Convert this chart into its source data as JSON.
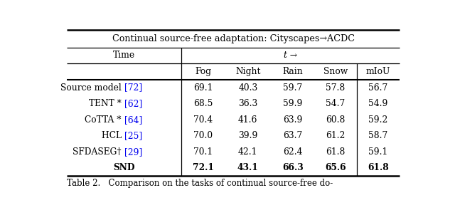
{
  "title": "Continual source-free adaptation: Cityscapes→ACDC",
  "time_label": "Time",
  "t_arrow": "t →",
  "col_headers": [
    "Fog",
    "Night",
    "Rain",
    "Snow",
    "mIoU"
  ],
  "row_label_cite_color": [
    {
      "base": "Source model ",
      "cite": "[72]"
    },
    {
      "base": "TENT * ",
      "cite": "[62]"
    },
    {
      "base": "CoTTA * ",
      "cite": "[64]"
    },
    {
      "base": "HCL ",
      "cite": "[25]"
    },
    {
      "base": "SFDASEG† ",
      "cite": "[29]"
    },
    {
      "base": "SND",
      "cite": ""
    }
  ],
  "data": [
    [
      "69.1",
      "40.3",
      "59.7",
      "57.8",
      "56.7"
    ],
    [
      "68.5",
      "36.3",
      "59.9",
      "54.7",
      "54.9"
    ],
    [
      "70.4",
      "41.6",
      "63.9",
      "60.8",
      "59.2"
    ],
    [
      "70.0",
      "39.9",
      "63.7",
      "61.2",
      "58.7"
    ],
    [
      "70.1",
      "42.1",
      "62.4",
      "61.8",
      "59.1"
    ],
    [
      "72.1",
      "43.1",
      "66.3",
      "65.6",
      "61.8"
    ]
  ],
  "cite_color": "#0000EE",
  "text_color": "#000000",
  "bg_color": "#FFFFFF",
  "caption": "Table 2.   Comparison on the tasks of continual source-free do-",
  "figsize": [
    6.4,
    3.02
  ],
  "dpi": 100
}
